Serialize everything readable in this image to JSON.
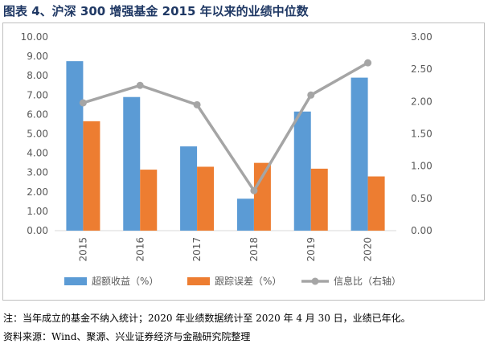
{
  "figure": {
    "title": "图表 4、沪深 300 增强基金 2015 年以来的业绩中位数",
    "note": "注：当年成立的基金不纳入统计；2020 年业绩数据统计至 2020 年 4 月 30 日，业绩已年化。",
    "source": "资料来源：Wind、聚源、兴业证券经济与金融研究院整理"
  },
  "colors": {
    "bar1": "#5b9bd5",
    "bar2": "#ed7d31",
    "line": "#a5a5a5",
    "title": "#1f3864"
  },
  "chart_data": {
    "type": "bar",
    "categories": [
      "2015",
      "2016",
      "2017",
      "2018",
      "2019",
      "2020"
    ],
    "series": [
      {
        "name": "超额收益（%）",
        "type": "bar",
        "axis": "left",
        "values": [
          8.75,
          6.9,
          4.35,
          1.65,
          6.15,
          7.9
        ]
      },
      {
        "name": "跟踪误差（%）",
        "type": "bar",
        "axis": "left",
        "values": [
          5.65,
          3.15,
          3.3,
          3.5,
          3.2,
          2.8
        ]
      },
      {
        "name": "信息比（右轴）",
        "type": "line",
        "axis": "right",
        "values": [
          1.98,
          2.25,
          1.95,
          0.62,
          2.1,
          2.6
        ]
      }
    ],
    "y_left": {
      "min": 0,
      "max": 10,
      "step": 1,
      "ticks": [
        "0.00",
        "1.00",
        "2.00",
        "3.00",
        "4.00",
        "5.00",
        "6.00",
        "7.00",
        "8.00",
        "9.00",
        "10.00"
      ]
    },
    "y_right": {
      "min": 0,
      "max": 3,
      "step": 0.5,
      "ticks": [
        "0.00",
        "0.50",
        "1.00",
        "1.50",
        "2.00",
        "2.50",
        "3.00"
      ]
    },
    "grid": false,
    "legend": "bottom"
  }
}
